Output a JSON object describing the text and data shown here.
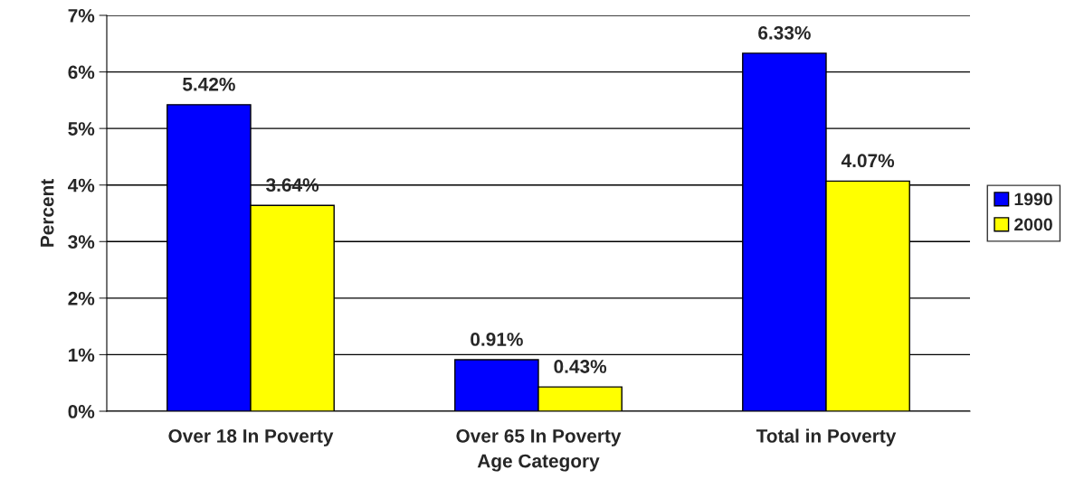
{
  "chart_data": {
    "type": "bar",
    "xlabel": "Age Category",
    "ylabel": "Percent",
    "categories": [
      "Over 18 In Poverty",
      "Over 65 In Poverty",
      "Total in Poverty"
    ],
    "series": [
      {
        "name": "1990",
        "color": "#0000ff",
        "values": [
          5.42,
          0.91,
          6.33
        ],
        "value_labels": [
          "5.42%",
          "0.91%",
          "6.33%"
        ]
      },
      {
        "name": "2000",
        "color": "#ffff00",
        "values": [
          3.64,
          0.43,
          4.07
        ],
        "value_labels": [
          "3.64%",
          "0.43%",
          "4.07%"
        ]
      }
    ],
    "ylim": [
      0,
      7
    ],
    "yticks": [
      {
        "value": 0,
        "label": "0%"
      },
      {
        "value": 1,
        "label": "1%"
      },
      {
        "value": 2,
        "label": "2%"
      },
      {
        "value": 3,
        "label": "3%"
      },
      {
        "value": 4,
        "label": "4%"
      },
      {
        "value": 5,
        "label": "5%"
      },
      {
        "value": 6,
        "label": "6%"
      },
      {
        "value": 7,
        "label": "7%"
      }
    ],
    "grid": "y",
    "legend": "right"
  }
}
